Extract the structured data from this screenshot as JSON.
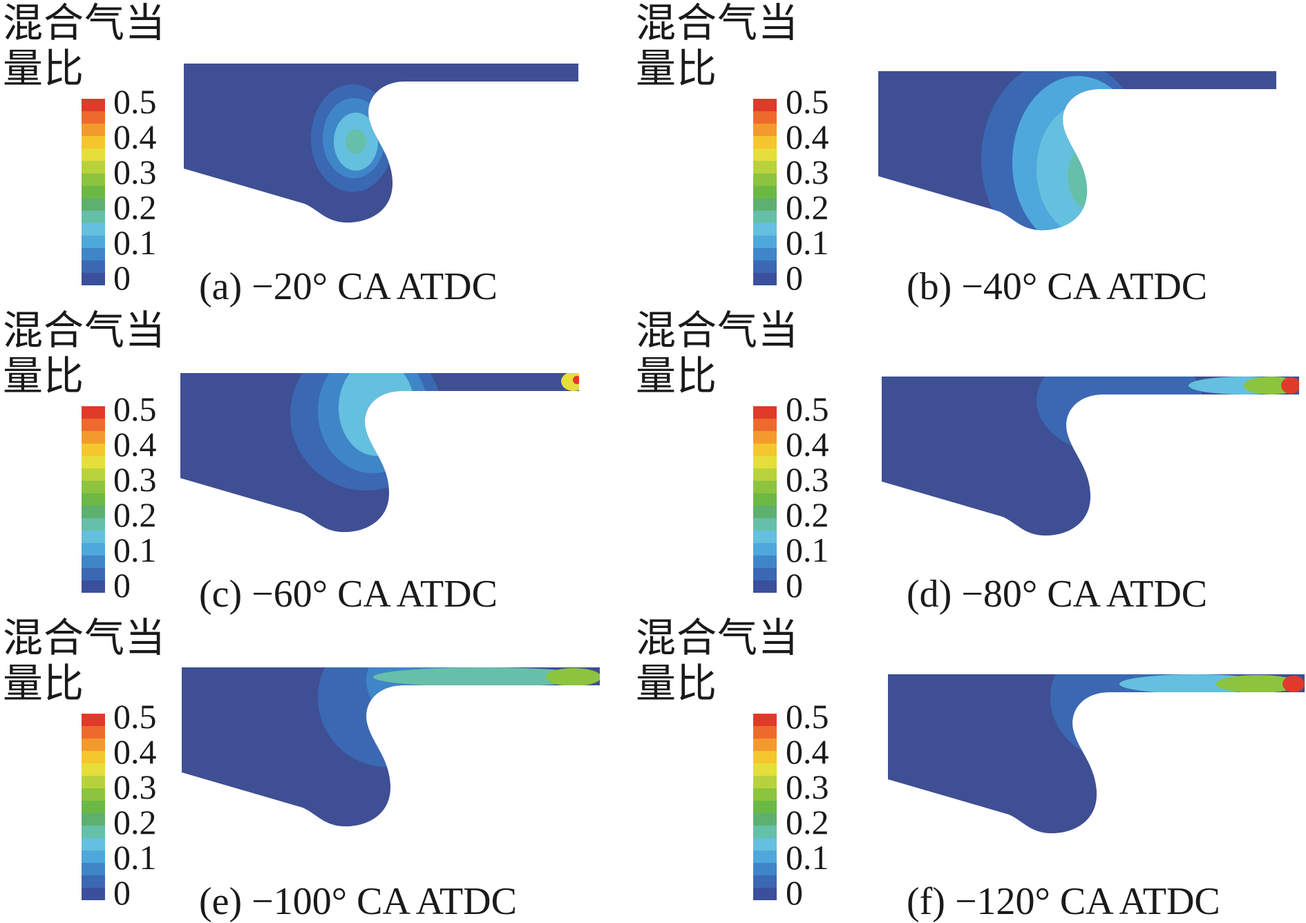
{
  "legend": {
    "title_line1": "混合气当",
    "title_line2": "量比",
    "ticks": [
      "0.5",
      "0.4",
      "0.3",
      "0.2",
      "0.1",
      "0"
    ],
    "colors": [
      "#e03a2a",
      "#ee6a2c",
      "#f39a2e",
      "#f5c62e",
      "#e6de3a",
      "#b8d23c",
      "#8cc43f",
      "#6cb844",
      "#5db070",
      "#66bfa8",
      "#64c0de",
      "#4fa8dc",
      "#3f86c8",
      "#3b68b2",
      "#3b509c"
    ]
  },
  "panels": [
    {
      "caption": "(a) −20° CA ATDC"
    },
    {
      "caption": "(b) −40° CA ATDC"
    },
    {
      "caption": "(c) −60° CA ATDC"
    },
    {
      "caption": "(d) −80° CA ATDC"
    },
    {
      "caption": "(e) −100° CA ATDC"
    },
    {
      "caption": "(f) −120° CA ATDC"
    }
  ]
}
